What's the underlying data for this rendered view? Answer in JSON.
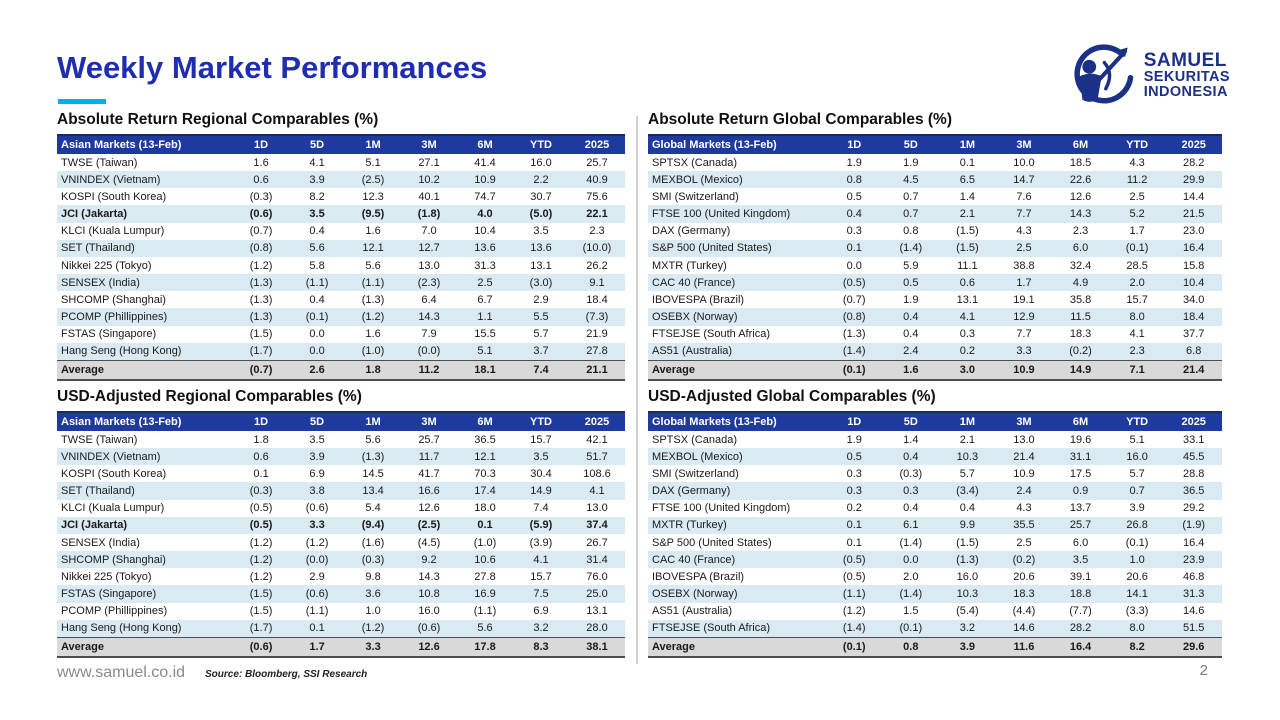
{
  "page": {
    "title": "Weekly Market Performances",
    "website": "www.samuel.co.id",
    "source_note": "Source: Bloomberg, SSI Research",
    "page_number": "2"
  },
  "logo": {
    "line1": "SAMUEL",
    "line2": "SEKURITAS",
    "line3": "INDONESIA",
    "icon": "archer-with-bow-swoosh"
  },
  "colors": {
    "title_blue": "#1F2DB0",
    "accent_cyan": "#00B0F0",
    "table_header_navy": "#1F3A9E",
    "row_stripe_blue": "#D9EAF2",
    "average_row_gray": "#D9D9D9",
    "logo_navy": "#1B3087"
  },
  "tables": [
    {
      "title": "Absolute Return Regional Comparables (%)",
      "columns": [
        "Asian Markets (13-Feb)",
        "1D",
        "5D",
        "1M",
        "3M",
        "6M",
        "YTD",
        "2025"
      ],
      "rows": [
        {
          "name": "TWSE (Taiwan)",
          "bold": false,
          "values": [
            "1.6",
            "4.1",
            "5.1",
            "27.1",
            "41.4",
            "16.0",
            "25.7"
          ]
        },
        {
          "name": "VNINDEX (Vietnam)",
          "bold": false,
          "values": [
            "0.6",
            "3.9",
            "(2.5)",
            "10.2",
            "10.9",
            "2.2",
            "40.9"
          ]
        },
        {
          "name": "KOSPI (South Korea)",
          "bold": false,
          "values": [
            "(0.3)",
            "8.2",
            "12.3",
            "40.1",
            "74.7",
            "30.7",
            "75.6"
          ]
        },
        {
          "name": "JCI (Jakarta)",
          "bold": true,
          "values": [
            "(0.6)",
            "3.5",
            "(9.5)",
            "(1.8)",
            "4.0",
            "(5.0)",
            "22.1"
          ]
        },
        {
          "name": "KLCI (Kuala Lumpur)",
          "bold": false,
          "values": [
            "(0.7)",
            "0.4",
            "1.6",
            "7.0",
            "10.4",
            "3.5",
            "2.3"
          ]
        },
        {
          "name": "SET (Thailand)",
          "bold": false,
          "values": [
            "(0.8)",
            "5.6",
            "12.1",
            "12.7",
            "13.6",
            "13.6",
            "(10.0)"
          ]
        },
        {
          "name": "Nikkei 225 (Tokyo)",
          "bold": false,
          "values": [
            "(1.2)",
            "5.8",
            "5.6",
            "13.0",
            "31.3",
            "13.1",
            "26.2"
          ]
        },
        {
          "name": "SENSEX (India)",
          "bold": false,
          "values": [
            "(1.3)",
            "(1.1)",
            "(1.1)",
            "(2.3)",
            "2.5",
            "(3.0)",
            "9.1"
          ]
        },
        {
          "name": "SHCOMP (Shanghai)",
          "bold": false,
          "values": [
            "(1.3)",
            "0.4",
            "(1.3)",
            "6.4",
            "6.7",
            "2.9",
            "18.4"
          ]
        },
        {
          "name": "PCOMP (Phillippines)",
          "bold": false,
          "values": [
            "(1.3)",
            "(0.1)",
            "(1.2)",
            "14.3",
            "1.1",
            "5.5",
            "(7.3)"
          ]
        },
        {
          "name": "FSTAS (Singapore)",
          "bold": false,
          "values": [
            "(1.5)",
            "0.0",
            "1.6",
            "7.9",
            "15.5",
            "5.7",
            "21.9"
          ]
        },
        {
          "name": "Hang Seng (Hong Kong)",
          "bold": false,
          "values": [
            "(1.7)",
            "0.0",
            "(1.0)",
            "(0.0)",
            "5.1",
            "3.7",
            "27.8"
          ]
        }
      ],
      "average": {
        "name": "Average",
        "values": [
          "(0.7)",
          "2.6",
          "1.8",
          "11.2",
          "18.1",
          "7.4",
          "21.1"
        ]
      }
    },
    {
      "title": "Absolute Return Global Comparables (%)",
      "columns": [
        "Global Markets (13-Feb)",
        "1D",
        "5D",
        "1M",
        "3M",
        "6M",
        "YTD",
        "2025"
      ],
      "rows": [
        {
          "name": "SPTSX (Canada)",
          "bold": false,
          "values": [
            "1.9",
            "1.9",
            "0.1",
            "10.0",
            "18.5",
            "4.3",
            "28.2"
          ]
        },
        {
          "name": "MEXBOL (Mexico)",
          "bold": false,
          "values": [
            "0.8",
            "4.5",
            "6.5",
            "14.7",
            "22.6",
            "11.2",
            "29.9"
          ]
        },
        {
          "name": "SMI (Switzerland)",
          "bold": false,
          "values": [
            "0.5",
            "0.7",
            "1.4",
            "7.6",
            "12.6",
            "2.5",
            "14.4"
          ]
        },
        {
          "name": "FTSE 100 (United Kingdom)",
          "bold": false,
          "values": [
            "0.4",
            "0.7",
            "2.1",
            "7.7",
            "14.3",
            "5.2",
            "21.5"
          ]
        },
        {
          "name": "DAX (Germany)",
          "bold": false,
          "values": [
            "0.3",
            "0.8",
            "(1.5)",
            "4.3",
            "2.3",
            "1.7",
            "23.0"
          ]
        },
        {
          "name": "S&P 500 (United States)",
          "bold": false,
          "values": [
            "0.1",
            "(1.4)",
            "(1.5)",
            "2.5",
            "6.0",
            "(0.1)",
            "16.4"
          ]
        },
        {
          "name": "MXTR (Turkey)",
          "bold": false,
          "values": [
            "0.0",
            "5.9",
            "11.1",
            "38.8",
            "32.4",
            "28.5",
            "15.8"
          ]
        },
        {
          "name": "CAC 40 (France)",
          "bold": false,
          "values": [
            "(0.5)",
            "0.5",
            "0.6",
            "1.7",
            "4.9",
            "2.0",
            "10.4"
          ]
        },
        {
          "name": "IBOVESPA (Brazil)",
          "bold": false,
          "values": [
            "(0.7)",
            "1.9",
            "13.1",
            "19.1",
            "35.8",
            "15.7",
            "34.0"
          ]
        },
        {
          "name": "OSEBX (Norway)",
          "bold": false,
          "values": [
            "(0.8)",
            "0.4",
            "4.1",
            "12.9",
            "11.5",
            "8.0",
            "18.4"
          ]
        },
        {
          "name": "FTSEJSE (South Africa)",
          "bold": false,
          "values": [
            "(1.3)",
            "0.4",
            "0.3",
            "7.7",
            "18.3",
            "4.1",
            "37.7"
          ]
        },
        {
          "name": "AS51 (Australia)",
          "bold": false,
          "values": [
            "(1.4)",
            "2.4",
            "0.2",
            "3.3",
            "(0.2)",
            "2.3",
            "6.8"
          ]
        }
      ],
      "average": {
        "name": "Average",
        "values": [
          "(0.1)",
          "1.6",
          "3.0",
          "10.9",
          "14.9",
          "7.1",
          "21.4"
        ]
      }
    },
    {
      "title": "USD-Adjusted Regional Comparables (%)",
      "columns": [
        "Asian Markets (13-Feb)",
        "1D",
        "5D",
        "1M",
        "3M",
        "6M",
        "YTD",
        "2025"
      ],
      "rows": [
        {
          "name": "TWSE (Taiwan)",
          "bold": false,
          "values": [
            "1.8",
            "3.5",
            "5.6",
            "25.7",
            "36.5",
            "15.7",
            "42.1"
          ]
        },
        {
          "name": "VNINDEX (Vietnam)",
          "bold": false,
          "values": [
            "0.6",
            "3.9",
            "(1.3)",
            "11.7",
            "12.1",
            "3.5",
            "51.7"
          ]
        },
        {
          "name": "KOSPI (South Korea)",
          "bold": false,
          "values": [
            "0.1",
            "6.9",
            "14.5",
            "41.7",
            "70.3",
            "30.4",
            "108.6"
          ]
        },
        {
          "name": "SET (Thailand)",
          "bold": false,
          "values": [
            "(0.3)",
            "3.8",
            "13.4",
            "16.6",
            "17.4",
            "14.9",
            "4.1"
          ]
        },
        {
          "name": "KLCI (Kuala Lumpur)",
          "bold": false,
          "values": [
            "(0.5)",
            "(0.6)",
            "5.4",
            "12.6",
            "18.0",
            "7.4",
            "13.0"
          ]
        },
        {
          "name": "JCI (Jakarta)",
          "bold": true,
          "values": [
            "(0.5)",
            "3.3",
            "(9.4)",
            "(2.5)",
            "0.1",
            "(5.9)",
            "37.4"
          ]
        },
        {
          "name": "SENSEX (India)",
          "bold": false,
          "values": [
            "(1.2)",
            "(1.2)",
            "(1.6)",
            "(4.5)",
            "(1.0)",
            "(3.9)",
            "26.7"
          ]
        },
        {
          "name": "SHCOMP (Shanghai)",
          "bold": false,
          "values": [
            "(1.2)",
            "(0.0)",
            "(0.3)",
            "9.2",
            "10.6",
            "4.1",
            "31.4"
          ]
        },
        {
          "name": "Nikkei 225 (Tokyo)",
          "bold": false,
          "values": [
            "(1.2)",
            "2.9",
            "9.8",
            "14.3",
            "27.8",
            "15.7",
            "76.0"
          ]
        },
        {
          "name": "FSTAS (Singapore)",
          "bold": false,
          "values": [
            "(1.5)",
            "(0.6)",
            "3.6",
            "10.8",
            "16.9",
            "7.5",
            "25.0"
          ]
        },
        {
          "name": "PCOMP (Phillippines)",
          "bold": false,
          "values": [
            "(1.5)",
            "(1.1)",
            "1.0",
            "16.0",
            "(1.1)",
            "6.9",
            "13.1"
          ]
        },
        {
          "name": "Hang Seng (Hong Kong)",
          "bold": false,
          "values": [
            "(1.7)",
            "0.1",
            "(1.2)",
            "(0.6)",
            "5.6",
            "3.2",
            "28.0"
          ]
        }
      ],
      "average": {
        "name": "Average",
        "values": [
          "(0.6)",
          "1.7",
          "3.3",
          "12.6",
          "17.8",
          "8.3",
          "38.1"
        ]
      }
    },
    {
      "title": "USD-Adjusted Global Comparables (%)",
      "columns": [
        "Global Markets (13-Feb)",
        "1D",
        "5D",
        "1M",
        "3M",
        "6M",
        "YTD",
        "2025"
      ],
      "rows": [
        {
          "name": "SPTSX (Canada)",
          "bold": false,
          "values": [
            "1.9",
            "1.4",
            "2.1",
            "13.0",
            "19.6",
            "5.1",
            "33.1"
          ]
        },
        {
          "name": "MEXBOL (Mexico)",
          "bold": false,
          "values": [
            "0.5",
            "0.4",
            "10.3",
            "21.4",
            "31.1",
            "16.0",
            "45.5"
          ]
        },
        {
          "name": "SMI (Switzerland)",
          "bold": false,
          "values": [
            "0.3",
            "(0.3)",
            "5.7",
            "10.9",
            "17.5",
            "5.7",
            "28.8"
          ]
        },
        {
          "name": "DAX (Germany)",
          "bold": false,
          "values": [
            "0.3",
            "0.3",
            "(3.4)",
            "2.4",
            "0.9",
            "0.7",
            "36.5"
          ]
        },
        {
          "name": "FTSE 100 (United Kingdom)",
          "bold": false,
          "values": [
            "0.2",
            "0.4",
            "0.4",
            "4.3",
            "13.7",
            "3.9",
            "29.2"
          ]
        },
        {
          "name": "MXTR (Turkey)",
          "bold": false,
          "values": [
            "0.1",
            "6.1",
            "9.9",
            "35.5",
            "25.7",
            "26.8",
            "(1.9)"
          ]
        },
        {
          "name": "S&P 500 (United States)",
          "bold": false,
          "values": [
            "0.1",
            "(1.4)",
            "(1.5)",
            "2.5",
            "6.0",
            "(0.1)",
            "16.4"
          ]
        },
        {
          "name": "CAC 40 (France)",
          "bold": false,
          "values": [
            "(0.5)",
            "0.0",
            "(1.3)",
            "(0.2)",
            "3.5",
            "1.0",
            "23.9"
          ]
        },
        {
          "name": "IBOVESPA (Brazil)",
          "bold": false,
          "values": [
            "(0.5)",
            "2.0",
            "16.0",
            "20.6",
            "39.1",
            "20.6",
            "46.8"
          ]
        },
        {
          "name": "OSEBX (Norway)",
          "bold": false,
          "values": [
            "(1.1)",
            "(1.4)",
            "10.3",
            "18.3",
            "18.8",
            "14.1",
            "31.3"
          ]
        },
        {
          "name": "AS51 (Australia)",
          "bold": false,
          "values": [
            "(1.2)",
            "1.5",
            "(5.4)",
            "(4.4)",
            "(7.7)",
            "(3.3)",
            "14.6"
          ]
        },
        {
          "name": "FTSEJSE (South Africa)",
          "bold": false,
          "values": [
            "(1.4)",
            "(0.1)",
            "3.2",
            "14.6",
            "28.2",
            "8.0",
            "51.5"
          ]
        }
      ],
      "average": {
        "name": "Average",
        "values": [
          "(0.1)",
          "0.8",
          "3.9",
          "11.6",
          "16.4",
          "8.2",
          "29.6"
        ]
      }
    }
  ]
}
